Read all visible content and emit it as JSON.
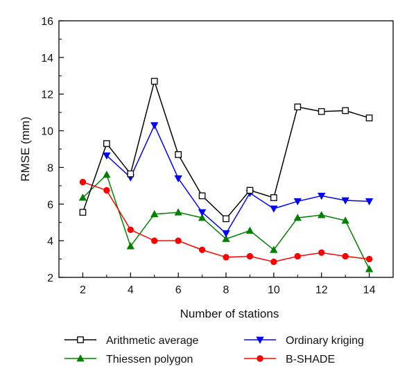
{
  "chart_data": {
    "type": "line",
    "title": "",
    "xlabel": "Number of stations",
    "ylabel": "RMSE (mm)",
    "xlim": [
      1,
      15
    ],
    "ylim": [
      2,
      16
    ],
    "xticks": [
      2,
      4,
      6,
      8,
      10,
      12,
      14
    ],
    "yticks": [
      2,
      4,
      6,
      8,
      10,
      12,
      14,
      16
    ],
    "x": [
      2,
      3,
      4,
      5,
      6,
      7,
      8,
      9,
      10,
      11,
      12,
      13,
      14
    ],
    "grid": false,
    "legend_position": "bottom",
    "series": [
      {
        "name": "Arithmetic average",
        "color": "#000000",
        "marker": "open-square",
        "values": [
          5.55,
          9.3,
          7.65,
          12.7,
          8.7,
          6.45,
          5.2,
          6.75,
          6.35,
          11.3,
          11.05,
          11.1,
          10.7
        ]
      },
      {
        "name": "Ordinary kriging",
        "color": "#0000ff",
        "marker": "down-triangle",
        "values": [
          null,
          8.65,
          7.45,
          10.3,
          7.4,
          5.55,
          4.4,
          6.6,
          5.75,
          6.15,
          6.45,
          6.2,
          6.15
        ]
      },
      {
        "name": "Thiessen polygon",
        "color": "#008000",
        "marker": "up-triangle",
        "values": [
          6.35,
          7.6,
          3.7,
          5.45,
          5.55,
          5.25,
          4.1,
          4.55,
          3.5,
          5.25,
          5.4,
          5.1,
          2.45
        ]
      },
      {
        "name": "B-SHADE",
        "color": "#ff0000",
        "marker": "circle",
        "values": [
          7.2,
          6.75,
          4.6,
          4.0,
          4.0,
          3.5,
          3.1,
          3.15,
          2.85,
          3.15,
          3.35,
          3.15,
          3.0
        ]
      }
    ]
  }
}
